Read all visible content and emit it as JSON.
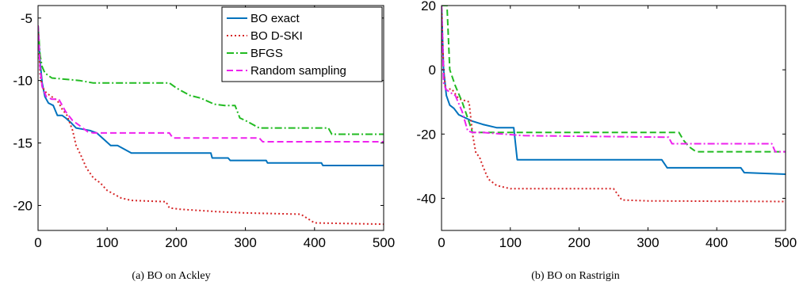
{
  "chart_data": [
    {
      "type": "line",
      "caption": "(a)  BO on Ackley",
      "title": "",
      "xlabel": "",
      "ylabel": "",
      "xlim": [
        0,
        500
      ],
      "ylim": [
        -22,
        -4
      ],
      "xticks": [
        0,
        100,
        200,
        300,
        400,
        500
      ],
      "yticks": [
        -5,
        -10,
        -15,
        -20
      ],
      "grid": false,
      "legend_position": "top-right",
      "series": [
        {
          "name": "BO exact",
          "color": "#0072bd",
          "style": "solid",
          "points": [
            [
              0,
              -5.6
            ],
            [
              3,
              -8.5
            ],
            [
              6,
              -10.2
            ],
            [
              10,
              -11.3
            ],
            [
              15,
              -11.8
            ],
            [
              22,
              -12.0
            ],
            [
              28,
              -12.8
            ],
            [
              35,
              -12.8
            ],
            [
              40,
              -13.0
            ],
            [
              48,
              -13.4
            ],
            [
              55,
              -13.8
            ],
            [
              65,
              -13.9
            ],
            [
              75,
              -14.0
            ],
            [
              85,
              -14.2
            ],
            [
              95,
              -14.7
            ],
            [
              105,
              -15.2
            ],
            [
              115,
              -15.2
            ],
            [
              135,
              -15.8
            ],
            [
              200,
              -15.8
            ],
            [
              250,
              -15.8
            ],
            [
              252,
              -16.2
            ],
            [
              275,
              -16.2
            ],
            [
              278,
              -16.4
            ],
            [
              330,
              -16.4
            ],
            [
              332,
              -16.6
            ],
            [
              410,
              -16.6
            ],
            [
              412,
              -16.8
            ],
            [
              500,
              -16.8
            ]
          ]
        },
        {
          "name": "BO D-SKI",
          "color": "#d62728",
          "style": "dotted",
          "points": [
            [
              0,
              -5.6
            ],
            [
              3,
              -9.5
            ],
            [
              6,
              -10.5
            ],
            [
              12,
              -11.0
            ],
            [
              20,
              -11.3
            ],
            [
              28,
              -11.6
            ],
            [
              35,
              -12.3
            ],
            [
              42,
              -12.8
            ],
            [
              50,
              -14.0
            ],
            [
              55,
              -15.2
            ],
            [
              62,
              -16.0
            ],
            [
              70,
              -17.0
            ],
            [
              80,
              -17.8
            ],
            [
              90,
              -18.2
            ],
            [
              100,
              -18.8
            ],
            [
              110,
              -19.1
            ],
            [
              120,
              -19.4
            ],
            [
              135,
              -19.6
            ],
            [
              185,
              -19.7
            ],
            [
              190,
              -20.2
            ],
            [
              205,
              -20.3
            ],
            [
              260,
              -20.5
            ],
            [
              300,
              -20.6
            ],
            [
              380,
              -20.7
            ],
            [
              400,
              -21.4
            ],
            [
              500,
              -21.5
            ]
          ]
        },
        {
          "name": "BFGS",
          "color": "#22bb22",
          "style": "dashdot",
          "points": [
            [
              0,
              -5.6
            ],
            [
              3,
              -8.0
            ],
            [
              6,
              -8.9
            ],
            [
              10,
              -9.4
            ],
            [
              20,
              -9.8
            ],
            [
              40,
              -9.9
            ],
            [
              60,
              -10.0
            ],
            [
              80,
              -10.2
            ],
            [
              190,
              -10.2
            ],
            [
              200,
              -10.6
            ],
            [
              220,
              -11.2
            ],
            [
              235,
              -11.4
            ],
            [
              255,
              -11.9
            ],
            [
              270,
              -12.0
            ],
            [
              285,
              -12.0
            ],
            [
              292,
              -13.0
            ],
            [
              300,
              -13.2
            ],
            [
              310,
              -13.5
            ],
            [
              320,
              -13.8
            ],
            [
              420,
              -13.8
            ],
            [
              425,
              -14.3
            ],
            [
              500,
              -14.3
            ]
          ]
        },
        {
          "name": "Random sampling",
          "color": "#ee22ee",
          "style": "dashed",
          "points": [
            [
              0,
              -5.6
            ],
            [
              3,
              -9.0
            ],
            [
              6,
              -10.5
            ],
            [
              12,
              -11.3
            ],
            [
              20,
              -11.5
            ],
            [
              30,
              -11.5
            ],
            [
              40,
              -12.5
            ],
            [
              50,
              -13.2
            ],
            [
              60,
              -13.6
            ],
            [
              72,
              -14.1
            ],
            [
              80,
              -14.2
            ],
            [
              190,
              -14.2
            ],
            [
              195,
              -14.6
            ],
            [
              320,
              -14.6
            ],
            [
              325,
              -14.9
            ],
            [
              500,
              -14.9
            ]
          ]
        }
      ]
    },
    {
      "type": "line",
      "caption": "(b)  BO on Rastrigin",
      "title": "",
      "xlabel": "",
      "ylabel": "",
      "xlim": [
        0,
        500
      ],
      "ylim": [
        -50,
        20
      ],
      "xticks": [
        0,
        100,
        200,
        300,
        400,
        500
      ],
      "yticks": [
        20,
        0,
        -20,
        -40
      ],
      "grid": false,
      "series": [
        {
          "name": "BO exact",
          "color": "#0072bd",
          "style": "solid",
          "points": [
            [
              0,
              20
            ],
            [
              3,
              0
            ],
            [
              7,
              -8
            ],
            [
              12,
              -11
            ],
            [
              18,
              -12
            ],
            [
              25,
              -14
            ],
            [
              35,
              -15
            ],
            [
              45,
              -16
            ],
            [
              60,
              -17
            ],
            [
              80,
              -18
            ],
            [
              105,
              -18
            ],
            [
              110,
              -28
            ],
            [
              320,
              -28
            ],
            [
              328,
              -30.5
            ],
            [
              435,
              -30.5
            ],
            [
              440,
              -32
            ],
            [
              500,
              -32.5
            ]
          ]
        },
        {
          "name": "BO D-SKI",
          "color": "#d62728",
          "style": "dotted",
          "points": [
            [
              0,
              20
            ],
            [
              3,
              0
            ],
            [
              6,
              -6
            ],
            [
              15,
              -6
            ],
            [
              25,
              -9
            ],
            [
              40,
              -10
            ],
            [
              45,
              -20
            ],
            [
              50,
              -26
            ],
            [
              55,
              -27
            ],
            [
              60,
              -30
            ],
            [
              68,
              -34
            ],
            [
              80,
              -36
            ],
            [
              100,
              -37
            ],
            [
              250,
              -37
            ],
            [
              262,
              -40.5
            ],
            [
              300,
              -40.8
            ],
            [
              500,
              -41
            ]
          ]
        },
        {
          "name": "BFGS",
          "color": "#22bb22",
          "style": "dashed",
          "points": [
            [
              0,
              20
            ],
            [
              8,
              20
            ],
            [
              12,
              0
            ],
            [
              20,
              -5
            ],
            [
              30,
              -10
            ],
            [
              38,
              -15
            ],
            [
              45,
              -19.5
            ],
            [
              55,
              -19.5
            ],
            [
              345,
              -19.5
            ],
            [
              352,
              -22
            ],
            [
              360,
              -24
            ],
            [
              370,
              -25.5
            ],
            [
              500,
              -25.5
            ]
          ]
        },
        {
          "name": "Random sampling",
          "color": "#ee22ee",
          "style": "dashdot",
          "points": [
            [
              0,
              20
            ],
            [
              3,
              -4
            ],
            [
              6,
              -6
            ],
            [
              12,
              -7
            ],
            [
              20,
              -8
            ],
            [
              30,
              -13
            ],
            [
              38,
              -19
            ],
            [
              45,
              -19.5
            ],
            [
              60,
              -19.5
            ],
            [
              120,
              -20.5
            ],
            [
              330,
              -21
            ],
            [
              335,
              -23
            ],
            [
              480,
              -23
            ],
            [
              485,
              -25.5
            ],
            [
              500,
              -25.5
            ]
          ]
        }
      ]
    }
  ]
}
